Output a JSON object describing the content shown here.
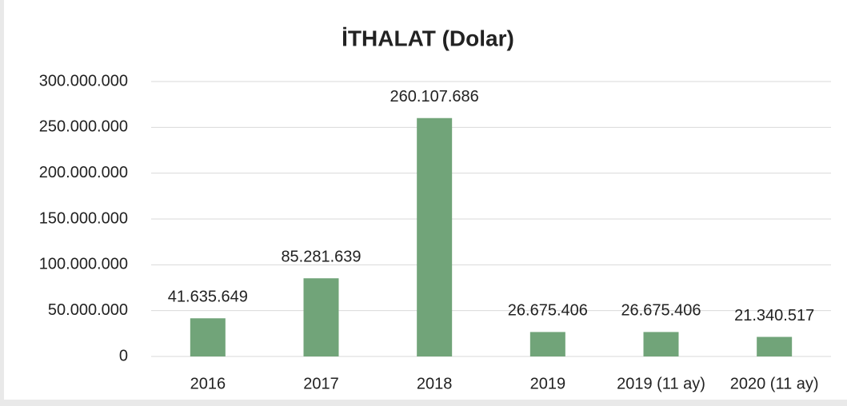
{
  "chart_data": {
    "type": "bar",
    "title": "İTHALAT (Dolar)",
    "categories": [
      "2016",
      "2017",
      "2018",
      "2019",
      "2019 (11 ay)",
      "2020 (11 ay)"
    ],
    "values": [
      41635649,
      85281639,
      260107686,
      26675406,
      26675406,
      21340517
    ],
    "value_labels": [
      "41.635.649",
      "85.281.639",
      "260.107.686",
      "26.675.406",
      "26.675.406",
      "21.340.517"
    ],
    "color": "#71a479",
    "ylim": [
      0,
      300000000
    ],
    "yticks": [
      0,
      {
        "value": 50000000,
        "label": "50.000.000"
      },
      {
        "value": 100000000,
        "label": "100.000.000"
      },
      {
        "value": 150000000,
        "label": "150.000.000"
      },
      {
        "value": 200000000,
        "label": "200.000.000"
      },
      {
        "value": 250000000,
        "label": "250.000.000"
      },
      {
        "value": 300000000,
        "label": "300.000.000"
      }
    ],
    "grid": true
  }
}
